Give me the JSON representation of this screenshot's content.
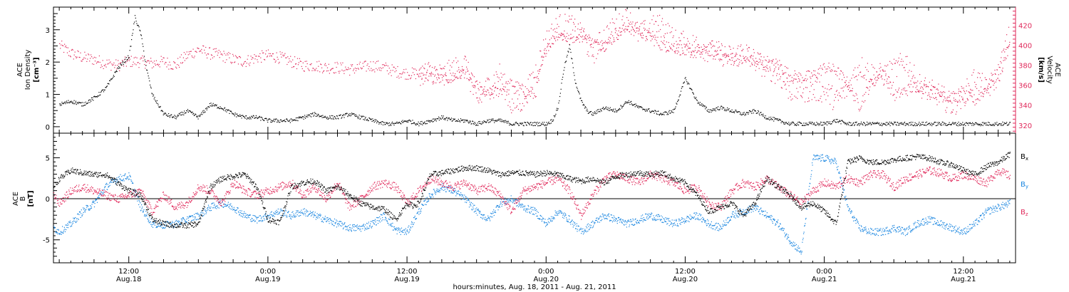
{
  "colors": {
    "density": "#000000",
    "velocity": "#e0285a",
    "bx": "#000000",
    "by": "#1a86e0",
    "bz": "#e0285a",
    "axis": "#000000"
  },
  "time_axis": {
    "title": "hours:minutes, Aug. 18, 2011 - Aug. 21, 2011",
    "range_hours": [
      5.5,
      88.5
    ],
    "ticks": [
      {
        "hour": 12,
        "time": "12:00",
        "date": "Aug.18"
      },
      {
        "hour": 24,
        "time": "0:00",
        "date": "Aug.19"
      },
      {
        "hour": 36,
        "time": "12:00",
        "date": "Aug.19"
      },
      {
        "hour": 48,
        "time": "0:00",
        "date": "Aug.20"
      },
      {
        "hour": 60,
        "time": "12:00",
        "date": "Aug.20"
      },
      {
        "hour": 72,
        "time": "0:00",
        "date": "Aug.21"
      },
      {
        "hour": 84,
        "time": "12:00",
        "date": "Aug.21"
      }
    ]
  },
  "panel_top": {
    "left_label": [
      "ACE",
      "Ion Density",
      "[cm⁻³]"
    ],
    "right_label": [
      "ACE",
      "Velocity",
      "[km/s]"
    ],
    "left_ticks": [
      0,
      1,
      2,
      3
    ],
    "right_ticks": [
      320,
      340,
      360,
      380,
      400,
      420
    ]
  },
  "panel_bottom": {
    "left_label": [
      "ACE",
      "B",
      "[nT]"
    ],
    "left_ticks": [
      -5,
      0,
      5
    ],
    "legend": [
      "Bx",
      "By",
      "Bz"
    ]
  },
  "chart_data": [
    {
      "type": "scatter",
      "xlabel": "hours:minutes, Aug. 18, 2011 - Aug. 21, 2011",
      "x_units": "hours since Aug. 18, 2011 00:00",
      "ylabel": "ACE Ion Density [cm⁻³]",
      "ylim": [
        -0.2,
        3.7
      ],
      "y2label": "ACE Velocity [km/s]",
      "y2lim": [
        312,
        438
      ],
      "series": [
        {
          "name": "Ion Density",
          "axis": "left",
          "x": [
            6,
            7,
            8,
            9,
            10,
            11,
            12,
            12.5,
            13,
            13.5,
            14,
            15,
            16,
            17,
            18,
            19,
            20,
            21,
            22,
            23,
            24,
            25,
            26,
            27,
            28,
            29,
            30,
            31,
            32,
            33,
            34,
            35,
            36,
            37,
            38,
            39,
            40,
            41,
            42,
            43,
            44,
            45,
            46,
            47,
            48,
            48.5,
            49,
            49.5,
            50,
            50.5,
            51,
            51.5,
            52,
            53,
            54,
            55,
            56,
            57,
            58,
            59,
            60,
            61,
            62,
            63,
            64,
            65,
            66,
            67,
            68,
            69,
            70,
            71,
            72,
            73,
            74,
            75,
            76,
            77,
            78,
            79,
            80,
            81,
            82,
            83,
            84,
            85,
            86,
            87,
            88
          ],
          "y": [
            0.7,
            0.8,
            0.7,
            0.9,
            1.2,
            1.8,
            2.2,
            3.4,
            2.9,
            1.8,
            1.0,
            0.4,
            0.3,
            0.5,
            0.3,
            0.7,
            0.6,
            0.4,
            0.3,
            0.3,
            0.2,
            0.2,
            0.2,
            0.3,
            0.4,
            0.3,
            0.3,
            0.4,
            0.3,
            0.2,
            0.1,
            0.1,
            0.2,
            0.1,
            0.2,
            0.3,
            0.2,
            0.2,
            0.1,
            0.2,
            0.2,
            0.1,
            0.1,
            0.1,
            0.1,
            0.2,
            0.6,
            1.8,
            2.5,
            1.4,
            0.8,
            0.5,
            0.4,
            0.6,
            0.5,
            0.8,
            0.6,
            0.5,
            0.4,
            0.5,
            1.5,
            0.8,
            0.5,
            0.6,
            0.5,
            0.4,
            0.5,
            0.3,
            0.2,
            0.1,
            0.1,
            0.1,
            0.1,
            0.2,
            0.1,
            0.1,
            0.1,
            0.1,
            0.1,
            0.1,
            0.1,
            0.1,
            0.1,
            0.1,
            0.1,
            0.1,
            0.1,
            0.1,
            0.1
          ]
        },
        {
          "name": "Velocity",
          "axis": "right",
          "x": [
            6,
            7,
            8,
            9,
            10,
            11,
            12,
            13,
            14,
            15,
            16,
            17,
            18,
            19,
            20,
            21,
            22,
            23,
            24,
            25,
            26,
            27,
            28,
            29,
            30,
            31,
            32,
            33,
            34,
            35,
            36,
            37,
            38,
            39,
            40,
            41,
            42,
            43,
            44,
            45,
            46,
            47,
            48,
            49,
            50,
            51,
            52,
            53,
            54,
            55,
            56,
            57,
            58,
            59,
            60,
            61,
            62,
            63,
            64,
            65,
            66,
            67,
            68,
            69,
            70,
            71,
            72,
            73,
            74,
            75,
            76,
            77,
            78,
            79,
            80,
            81,
            82,
            83,
            84,
            85,
            86,
            87,
            88
          ],
          "y": [
            400,
            392,
            388,
            386,
            382,
            380,
            384,
            384,
            382,
            384,
            380,
            390,
            396,
            392,
            390,
            386,
            384,
            388,
            390,
            388,
            384,
            380,
            380,
            378,
            378,
            376,
            378,
            380,
            378,
            374,
            372,
            372,
            368,
            366,
            368,
            374,
            360,
            350,
            355,
            362,
            355,
            350,
            398,
            412,
            405,
            415,
            402,
            400,
            410,
            420,
            415,
            408,
            400,
            398,
            395,
            392,
            398,
            390,
            386,
            385,
            384,
            380,
            382,
            370,
            368,
            370,
            378,
            375,
            362,
            340,
            362,
            375,
            350,
            355,
            360,
            355,
            350,
            348,
            350,
            345,
            358,
            372,
            400
          ]
        },
        {
          "name": "Velocity",
          "axis": "right",
          "x": [
            37,
            38,
            39,
            40,
            41,
            42,
            43,
            44,
            45,
            46,
            47,
            48,
            49,
            50,
            51,
            52,
            53,
            54,
            55,
            56,
            57,
            58,
            59,
            60,
            61,
            62,
            63,
            64,
            65,
            66,
            67,
            68,
            69,
            70,
            71,
            72,
            73,
            74,
            75,
            76,
            77,
            78,
            79,
            80,
            81,
            82,
            83,
            84,
            85,
            86,
            87,
            88
          ],
          "y": [
            372,
            374,
            370,
            376,
            382,
            342,
            360,
            372,
            340,
            345,
            372,
            405,
            420,
            420,
            410,
            392,
            410,
            418,
            428,
            410,
            418,
            420,
            405,
            402,
            400,
            395,
            392,
            388,
            395,
            385,
            378,
            372,
            355,
            355,
            355,
            355,
            345,
            358,
            380,
            372,
            370,
            375,
            385,
            362,
            355,
            350,
            340,
            350,
            368,
            355,
            372,
            412
          ]
        }
      ]
    },
    {
      "type": "scatter",
      "xlabel": "hours:minutes, Aug. 18, 2011 - Aug. 21, 2011",
      "x_units": "hours since Aug. 18, 2011 00:00",
      "ylabel": "ACE B [nT]",
      "ylim": [
        -7.8,
        8
      ],
      "series": [
        {
          "name": "Bx",
          "x": [
            5.5,
            6,
            7,
            8,
            9,
            10,
            11,
            12,
            13,
            14,
            15,
            16,
            17,
            18,
            19,
            20,
            21,
            22,
            23,
            24,
            25,
            26,
            27,
            28,
            29,
            30,
            31,
            32,
            33,
            34,
            35,
            36,
            36.5,
            37,
            38,
            39,
            40,
            41,
            42,
            43,
            44,
            45,
            46,
            47,
            48,
            49,
            50,
            51,
            52,
            53,
            54,
            55,
            56,
            57,
            58,
            59,
            60,
            61,
            62,
            63,
            64,
            65,
            66,
            67,
            68,
            69,
            70,
            71,
            72,
            73,
            74,
            75,
            76,
            77,
            78,
            79,
            80,
            81,
            82,
            83,
            84,
            85,
            86,
            87,
            88
          ],
          "y": [
            1.5,
            2.5,
            3.5,
            3.2,
            3.0,
            3.0,
            2.0,
            1.0,
            0.5,
            -2.5,
            -3.0,
            -3.2,
            -3.2,
            -3.0,
            1.5,
            2.5,
            2.8,
            3.0,
            1.5,
            -2.5,
            -2.8,
            1.5,
            2.0,
            2.2,
            1.0,
            1.5,
            0.5,
            -0.5,
            -1.0,
            -1.2,
            -2.5,
            -0.5,
            -0.8,
            -0.5,
            3.0,
            3.2,
            3.5,
            3.8,
            3.8,
            3.5,
            3.0,
            3.2,
            3.2,
            3.0,
            3.2,
            3.0,
            2.5,
            2.2,
            2.5,
            2.0,
            2.8,
            3.0,
            3.2,
            3.0,
            3.2,
            2.5,
            2.0,
            0.5,
            -1.5,
            -1.0,
            -0.5,
            -2.0,
            -0.5,
            2.5,
            1.5,
            0.5,
            -1.0,
            -0.5,
            -1.5,
            -3.0,
            4.5,
            5.0,
            4.5,
            4.5,
            4.8,
            5.0,
            5.2,
            5.0,
            4.5,
            4.2,
            3.5,
            3.0,
            4.0,
            4.5,
            5.5
          ]
        },
        {
          "name": "By",
          "x": [
            5.5,
            6,
            7,
            8,
            9,
            10,
            11,
            12,
            13,
            14,
            15,
            16,
            17,
            18,
            19,
            20,
            21,
            22,
            23,
            24,
            25,
            26,
            27,
            28,
            29,
            30,
            31,
            32,
            33,
            34,
            35,
            36,
            37,
            38,
            39,
            40,
            41,
            42,
            43,
            44,
            45,
            46,
            47,
            48,
            49,
            50,
            51,
            52,
            53,
            54,
            55,
            56,
            57,
            58,
            59,
            60,
            61,
            62,
            63,
            64,
            65,
            66,
            67,
            68,
            69,
            70,
            71,
            72,
            73,
            74,
            75,
            76,
            77,
            78,
            79,
            80,
            81,
            82,
            83,
            84,
            85,
            86,
            87,
            88
          ],
          "y": [
            -3.5,
            -4.0,
            -3.0,
            -1.5,
            -0.5,
            1.5,
            2.5,
            2.8,
            -1.0,
            -3.0,
            -3.2,
            -3.0,
            -2.5,
            -2.0,
            -1.0,
            -0.5,
            -1.0,
            -2.0,
            -2.5,
            -2.0,
            -1.5,
            -2.0,
            -1.5,
            -2.0,
            -2.5,
            -3.0,
            -3.5,
            -3.5,
            -3.0,
            -2.0,
            -3.8,
            -4.0,
            -1.5,
            0.5,
            1.5,
            1.0,
            0.0,
            -1.5,
            -2.5,
            -0.5,
            0.0,
            -1.0,
            -1.5,
            -3.0,
            -1.5,
            -2.5,
            -4.0,
            -3.0,
            -2.0,
            -2.5,
            -3.0,
            -2.5,
            -2.0,
            -2.5,
            -3.0,
            -2.5,
            -2.0,
            -3.0,
            -3.5,
            -2.0,
            -1.5,
            -1.0,
            -2.0,
            -3.0,
            -5.0,
            -6.5,
            5.0,
            5.0,
            4.5,
            -1.0,
            -3.5,
            -4.0,
            -4.0,
            -3.5,
            -4.0,
            -3.0,
            -2.5,
            -3.0,
            -3.5,
            -4.0,
            -3.0,
            -1.5,
            -1.0,
            -0.5
          ]
        },
        {
          "name": "Bz",
          "x": [
            5.5,
            6,
            7,
            8,
            9,
            10,
            11,
            12,
            13,
            14,
            15,
            16,
            17,
            18,
            19,
            20,
            21,
            22,
            23,
            24,
            25,
            26,
            27,
            28,
            29,
            30,
            31,
            32,
            33,
            34,
            35,
            36,
            37,
            38,
            39,
            40,
            41,
            42,
            43,
            44,
            45,
            46,
            47,
            48,
            49,
            50,
            51,
            52,
            53,
            54,
            55,
            56,
            57,
            58,
            59,
            60,
            61,
            62,
            63,
            64,
            65,
            66,
            67,
            68,
            69,
            70,
            71,
            72,
            73,
            74,
            75,
            76,
            77,
            78,
            79,
            80,
            81,
            82,
            83,
            84,
            85,
            86,
            87,
            88
          ],
          "y": [
            0.5,
            -0.5,
            1.0,
            1.5,
            1.0,
            0.5,
            0.0,
            0.5,
            1.0,
            -1.5,
            0.5,
            -1.0,
            -0.5,
            1.5,
            1.0,
            -0.5,
            2.0,
            1.0,
            0.5,
            1.0,
            1.5,
            2.0,
            0.5,
            1.5,
            0.0,
            2.0,
            -1.0,
            0.0,
            1.5,
            2.0,
            1.5,
            -0.5,
            1.0,
            2.5,
            2.0,
            1.5,
            2.0,
            1.0,
            1.5,
            0.5,
            -1.5,
            1.0,
            1.5,
            2.0,
            2.5,
            1.0,
            -2.0,
            0.5,
            2.5,
            3.0,
            2.5,
            2.0,
            3.0,
            2.5,
            2.0,
            1.0,
            1.5,
            -0.5,
            -1.0,
            1.0,
            2.0,
            1.5,
            2.5,
            1.5,
            0.5,
            -0.5,
            1.0,
            2.0,
            1.5,
            2.5,
            2.0,
            3.0,
            3.0,
            1.5,
            2.5,
            3.0,
            3.5,
            3.2,
            2.5,
            3.0,
            2.5,
            2.0,
            3.5,
            2.8
          ]
        }
      ]
    }
  ]
}
